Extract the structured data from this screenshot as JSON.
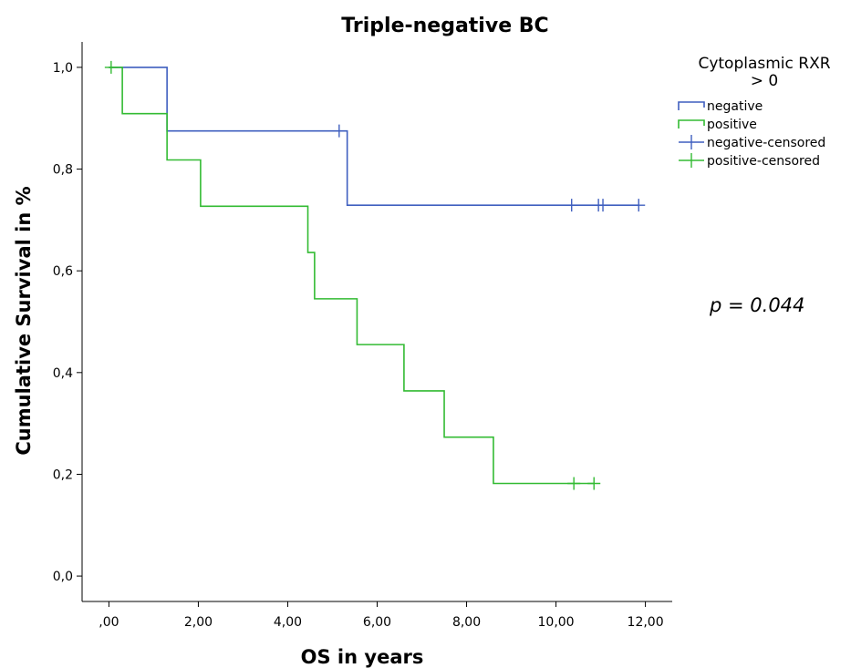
{
  "chart_data": {
    "type": "line",
    "subtype": "kaplan-meier",
    "title": "Triple-negative BC",
    "xlabel": "OS in years",
    "ylabel": "Cumulative Survival in %",
    "xlim": [
      -0.6,
      12.6
    ],
    "ylim": [
      -0.05,
      1.05
    ],
    "x_ticks": [
      0,
      2,
      4,
      6,
      8,
      10,
      12
    ],
    "x_tick_labels": [
      ",00",
      "2,00",
      "4,00",
      "6,00",
      "8,00",
      "10,00",
      "12,00"
    ],
    "y_ticks": [
      0,
      0.2,
      0.4,
      0.6,
      0.8,
      1.0
    ],
    "y_tick_labels": [
      "0,0",
      "0,2",
      "0,4",
      "0,6",
      "0,8",
      "1,0"
    ],
    "grid": false,
    "legend_title": [
      "Cytoplasmic RXR",
      "> 0"
    ],
    "legend_position": "top-right",
    "series": [
      {
        "name": "negative",
        "color": "#3f5fbf",
        "steps": [
          [
            0,
            1.0
          ],
          [
            1.3,
            0.875
          ],
          [
            5.33,
            0.729
          ]
        ],
        "end_x": 11.85,
        "censored": [
          [
            5.15,
            0.875
          ],
          [
            10.35,
            0.729
          ],
          [
            10.95,
            0.729
          ],
          [
            11.05,
            0.729
          ],
          [
            11.85,
            0.729
          ]
        ]
      },
      {
        "name": "positive",
        "color": "#33bb33",
        "steps": [
          [
            0,
            1.0
          ],
          [
            0.3,
            0.909
          ],
          [
            1.3,
            0.818
          ],
          [
            2.05,
            0.727
          ],
          [
            4.45,
            0.636
          ],
          [
            4.6,
            0.545
          ],
          [
            5.55,
            0.455
          ],
          [
            6.6,
            0.364
          ],
          [
            7.5,
            0.273
          ],
          [
            8.6,
            0.182
          ]
        ],
        "end_x": 10.85,
        "censored": [
          [
            0.05,
            1.0
          ],
          [
            10.4,
            0.182
          ],
          [
            10.85,
            0.182
          ]
        ]
      }
    ],
    "legend_entries": [
      {
        "label": "negative",
        "series": 0,
        "marker": "step"
      },
      {
        "label": "positive",
        "series": 1,
        "marker": "step"
      },
      {
        "label": "negative-censored",
        "series": 0,
        "marker": "cross"
      },
      {
        "label": "positive-censored",
        "series": 1,
        "marker": "cross"
      }
    ],
    "annotation": "p = 0.044"
  }
}
